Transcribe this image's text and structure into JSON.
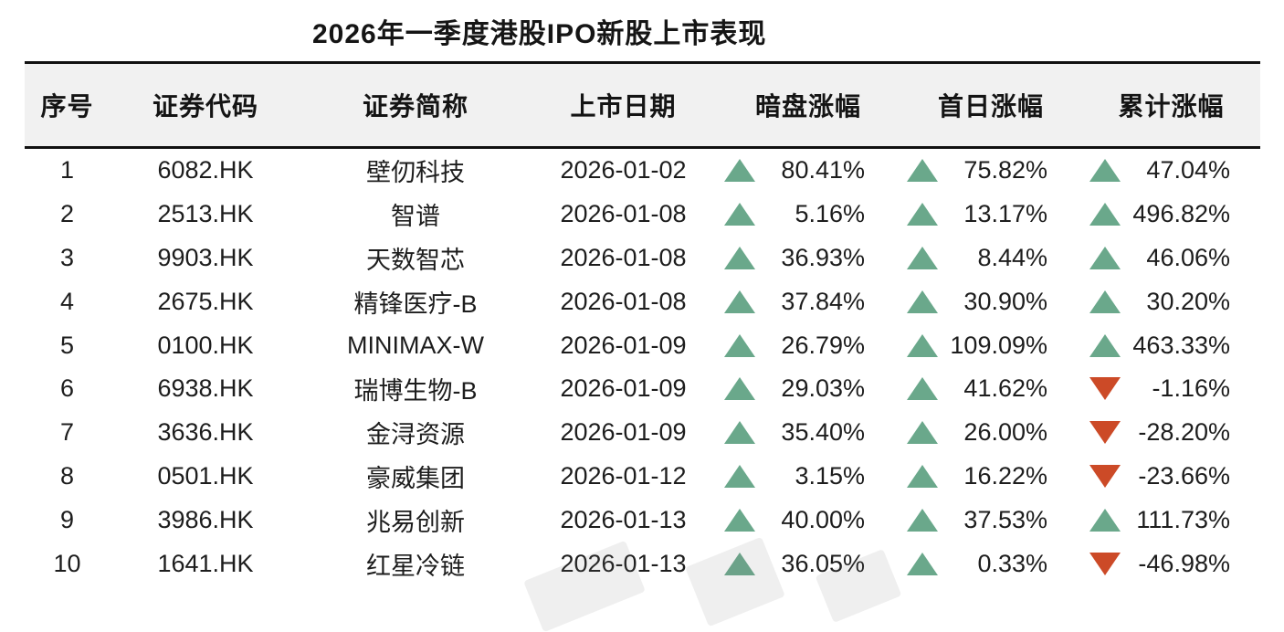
{
  "chart_data": {
    "type": "table",
    "title": "2026年一季度港股IPO新股上市表现",
    "columns": [
      "序号",
      "证券代码",
      "证券简称",
      "上市日期",
      "暗盘涨幅",
      "首日涨幅",
      "累计涨幅"
    ],
    "rows": [
      {
        "no": "1",
        "code": "6082.HK",
        "name": "壁仞科技",
        "date": "2026-01-02",
        "dark_change": {
          "direction": "up",
          "value": "80.41%"
        },
        "first_day_change": {
          "direction": "up",
          "value": "75.82%"
        },
        "cumulative_change": {
          "direction": "up",
          "value": "47.04%"
        }
      },
      {
        "no": "2",
        "code": "2513.HK",
        "name": "智谱",
        "date": "2026-01-08",
        "dark_change": {
          "direction": "up",
          "value": "5.16%"
        },
        "first_day_change": {
          "direction": "up",
          "value": "13.17%"
        },
        "cumulative_change": {
          "direction": "up",
          "value": "496.82%"
        }
      },
      {
        "no": "3",
        "code": "9903.HK",
        "name": "天数智芯",
        "date": "2026-01-08",
        "dark_change": {
          "direction": "up",
          "value": "36.93%"
        },
        "first_day_change": {
          "direction": "up",
          "value": "8.44%"
        },
        "cumulative_change": {
          "direction": "up",
          "value": "46.06%"
        }
      },
      {
        "no": "4",
        "code": "2675.HK",
        "name": "精锋医疗-B",
        "date": "2026-01-08",
        "dark_change": {
          "direction": "up",
          "value": "37.84%"
        },
        "first_day_change": {
          "direction": "up",
          "value": "30.90%"
        },
        "cumulative_change": {
          "direction": "up",
          "value": "30.20%"
        }
      },
      {
        "no": "5",
        "code": "0100.HK",
        "name": "MINIMAX-W",
        "date": "2026-01-09",
        "dark_change": {
          "direction": "up",
          "value": "26.79%"
        },
        "first_day_change": {
          "direction": "up",
          "value": "109.09%"
        },
        "cumulative_change": {
          "direction": "up",
          "value": "463.33%"
        }
      },
      {
        "no": "6",
        "code": "6938.HK",
        "name": "瑞博生物-B",
        "date": "2026-01-09",
        "dark_change": {
          "direction": "up",
          "value": "29.03%"
        },
        "first_day_change": {
          "direction": "up",
          "value": "41.62%"
        },
        "cumulative_change": {
          "direction": "down",
          "value": "-1.16%"
        }
      },
      {
        "no": "7",
        "code": "3636.HK",
        "name": "金浔资源",
        "date": "2026-01-09",
        "dark_change": {
          "direction": "up",
          "value": "35.40%"
        },
        "first_day_change": {
          "direction": "up",
          "value": "26.00%"
        },
        "cumulative_change": {
          "direction": "down",
          "value": "-28.20%"
        }
      },
      {
        "no": "8",
        "code": "0501.HK",
        "name": "豪威集团",
        "date": "2026-01-12",
        "dark_change": {
          "direction": "up",
          "value": "3.15%"
        },
        "first_day_change": {
          "direction": "up",
          "value": "16.22%"
        },
        "cumulative_change": {
          "direction": "down",
          "value": "-23.66%"
        }
      },
      {
        "no": "9",
        "code": "3986.HK",
        "name": "兆易创新",
        "date": "2026-01-13",
        "dark_change": {
          "direction": "up",
          "value": "40.00%"
        },
        "first_day_change": {
          "direction": "up",
          "value": "37.53%"
        },
        "cumulative_change": {
          "direction": "up",
          "value": "111.73%"
        }
      },
      {
        "no": "10",
        "code": "1641.HK",
        "name": "红星冷链",
        "date": "2026-01-13",
        "dark_change": {
          "direction": "up",
          "value": "36.05%"
        },
        "first_day_change": {
          "direction": "up",
          "value": "0.33%"
        },
        "cumulative_change": {
          "direction": "down",
          "value": "-46.98%"
        }
      }
    ],
    "colors": {
      "up_green": "#6aa88b",
      "down_red": "#cc4a27",
      "header_bg": "#f1f1f1",
      "rule_black": "#111111"
    }
  }
}
